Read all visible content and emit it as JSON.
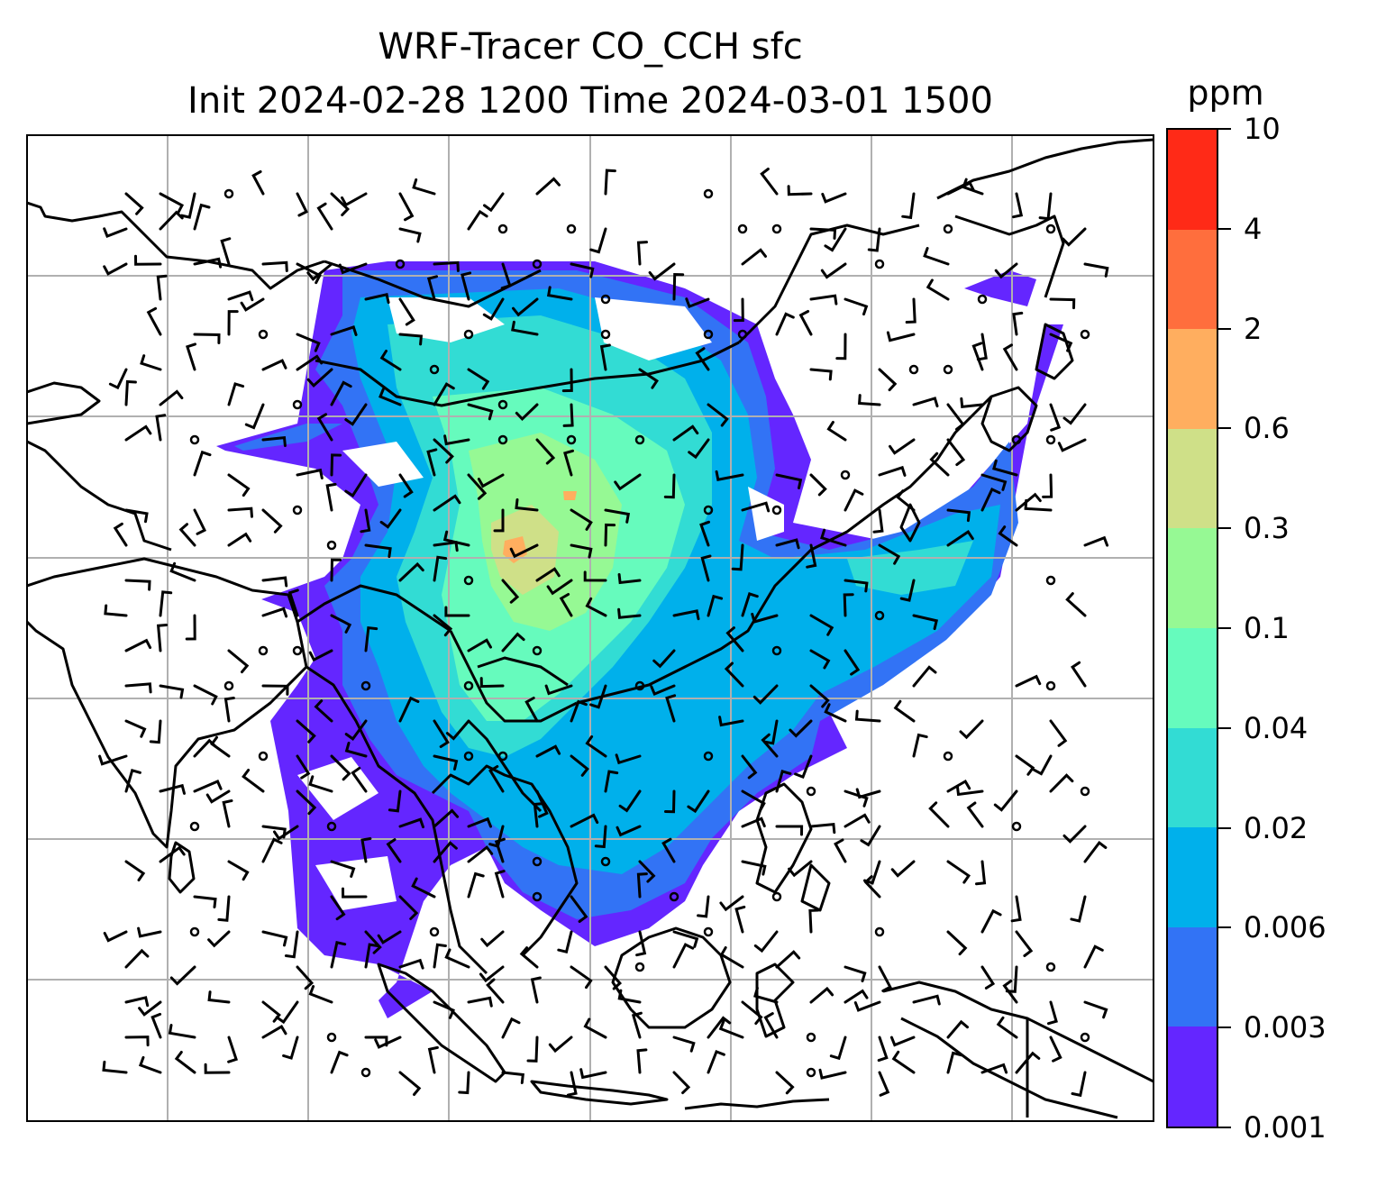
{
  "figure": {
    "title_line1": "WRF-Tracer CO_CCH sfc",
    "title_line2": "Init 2024-02-28 1200 Time 2024-03-01 1500"
  },
  "colorbar": {
    "unit": "ppm",
    "levels": [
      "0.001",
      "0.003",
      "0.006",
      "0.02",
      "0.04",
      "0.1",
      "0.3",
      "0.6",
      "2",
      "4",
      "10"
    ],
    "colors": [
      "#6426ff",
      "#3273f5",
      "#00b0eb",
      "#32dcd4",
      "#66fbbd",
      "#96f994",
      "#cfe088",
      "#ffae5f",
      "#ff6e3d",
      "#ff2a17"
    ]
  },
  "map": {
    "projection": "lat-lon",
    "gridlines": true,
    "coastlines": true,
    "country_borders": true,
    "field": "CO_CCH surface tracer concentration (filled contours)",
    "overlay": "wind barbs"
  },
  "colors": {
    "gridline": "#b0b0b0",
    "coastline": "#000000",
    "frame": "#000000"
  }
}
